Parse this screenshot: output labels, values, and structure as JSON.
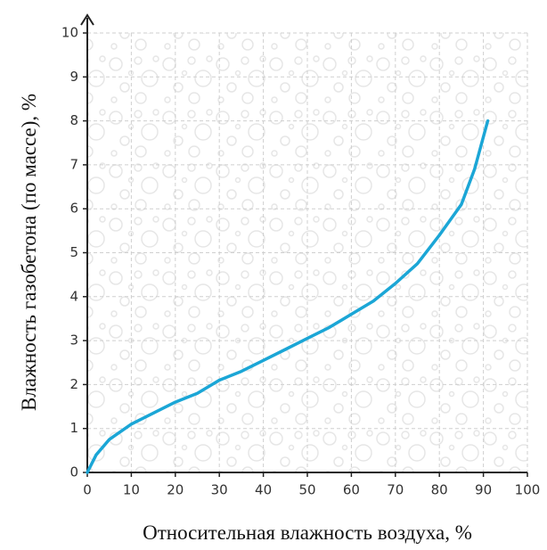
{
  "chart_data": {
    "type": "line",
    "x_label": "Относительная влажность воздуха, %",
    "y_label": "Влажность газобетона (по массе), %",
    "x": [
      0,
      2,
      5,
      10,
      15,
      20,
      25,
      30,
      35,
      40,
      45,
      50,
      55,
      60,
      65,
      70,
      75,
      80,
      85,
      88,
      91
    ],
    "values": [
      0,
      0.4,
      0.75,
      1.1,
      1.35,
      1.6,
      1.8,
      2.1,
      2.3,
      2.55,
      2.8,
      3.05,
      3.3,
      3.6,
      3.9,
      4.3,
      4.75,
      5.4,
      6.1,
      6.9,
      8.0
    ],
    "color": "#1ba6d6",
    "xlim": [
      0,
      100
    ],
    "xticks": [
      0,
      10,
      20,
      30,
      40,
      50,
      60,
      70,
      80,
      90,
      100
    ],
    "ylim": [
      0,
      10
    ],
    "yticks": [
      0,
      1,
      2,
      3,
      4,
      5,
      6,
      7,
      8,
      9,
      10
    ],
    "grid": true
  }
}
